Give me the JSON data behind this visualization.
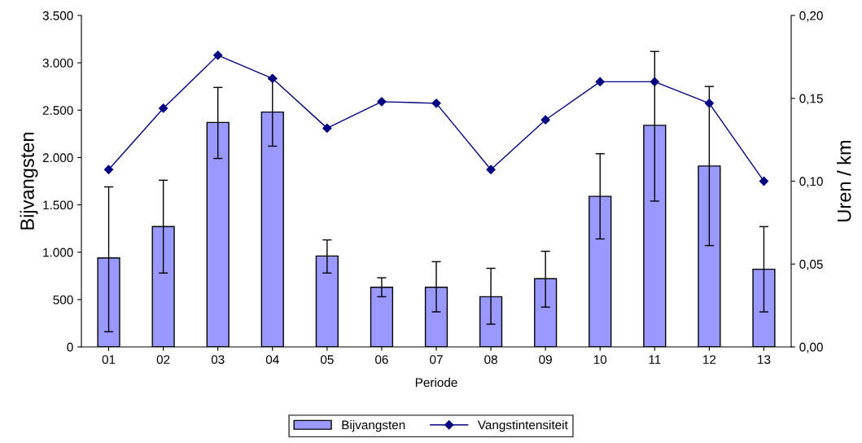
{
  "chart_data": {
    "type": "bar",
    "xlabel": "Periode",
    "ylabel": "Bijvangsten",
    "y2label": "Uren / km",
    "categories": [
      "01",
      "02",
      "03",
      "04",
      "05",
      "06",
      "07",
      "08",
      "09",
      "10",
      "11",
      "12",
      "13"
    ],
    "series": [
      {
        "name": "Bijvangsten",
        "color": "#9999ff",
        "values": [
          940,
          1270,
          2370,
          2480,
          960,
          630,
          630,
          530,
          720,
          1590,
          2340,
          1910,
          820
        ],
        "errors": [
          [
            160,
            1690
          ],
          [
            780,
            1760
          ],
          [
            1990,
            2740
          ],
          [
            2120,
            2830
          ],
          [
            780,
            1130
          ],
          [
            530,
            730
          ],
          [
            370,
            900
          ],
          [
            240,
            830
          ],
          [
            420,
            1010
          ],
          [
            1140,
            2040
          ],
          [
            1540,
            3120
          ],
          [
            1070,
            2750
          ],
          [
            370,
            1270
          ]
        ]
      },
      {
        "name": "Vangstintensiteit",
        "type": "line",
        "axis": "y2",
        "color": "#000080",
        "marker": "diamond",
        "line_style": "solid",
        "values": [
          0.107,
          0.144,
          0.176,
          0.162,
          0.132,
          0.148,
          0.147,
          0.107,
          0.137,
          0.16,
          0.16,
          0.147,
          0.1
        ]
      }
    ],
    "ylim": [
      0,
      3500
    ],
    "yticks": [
      {
        "value": 0,
        "label": "0"
      },
      {
        "value": 500,
        "label": "500"
      },
      {
        "value": 1000,
        "label": "1.000"
      },
      {
        "value": 1500,
        "label": "1.500"
      },
      {
        "value": 2000,
        "label": "2.000"
      },
      {
        "value": 2500,
        "label": "2.500"
      },
      {
        "value": 3000,
        "label": "3.000"
      },
      {
        "value": 3500,
        "label": "3.500"
      }
    ],
    "y2lim": [
      0,
      0.2
    ],
    "y2ticks": [
      {
        "value": 0,
        "label": "0,00"
      },
      {
        "value": 0.05,
        "label": "0,05"
      },
      {
        "value": 0.1,
        "label": "0,10"
      },
      {
        "value": 0.15,
        "label": "0,15"
      },
      {
        "value": 0.2,
        "label": "0,20"
      }
    ],
    "grid": false,
    "legend": "bottom"
  }
}
